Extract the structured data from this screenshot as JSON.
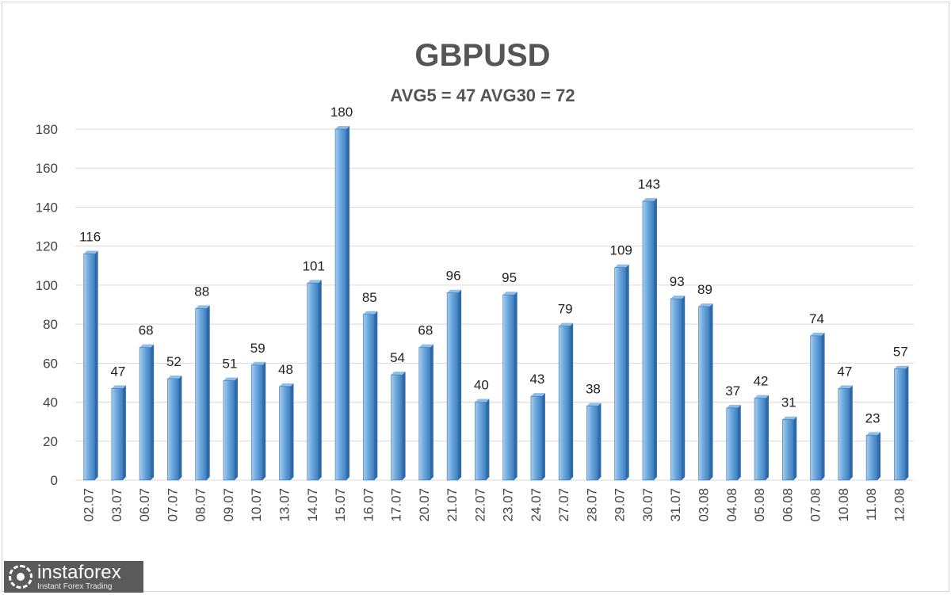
{
  "chart_data": {
    "type": "bar",
    "title": "GBPUSD",
    "subtitle": "AVG5 = 47 AVG30 = 72",
    "xlabel": "",
    "ylabel": "",
    "categories": [
      "02.07",
      "03.07",
      "06.07",
      "07.07",
      "08.07",
      "09.07",
      "10.07",
      "13.07",
      "14.07",
      "15.07",
      "16.07",
      "17.07",
      "20.07",
      "21.07",
      "22.07",
      "23.07",
      "24.07",
      "27.07",
      "28.07",
      "29.07",
      "30.07",
      "31.07",
      "03.08",
      "04.08",
      "05.08",
      "06.08",
      "07.08",
      "10.08",
      "11.08",
      "12.08"
    ],
    "values": [
      116,
      47,
      68,
      52,
      88,
      51,
      59,
      48,
      101,
      180,
      85,
      54,
      68,
      96,
      40,
      95,
      43,
      79,
      38,
      109,
      143,
      93,
      89,
      37,
      42,
      31,
      74,
      47,
      23,
      57
    ],
    "ylim": [
      0,
      180
    ],
    "yticks": [
      0,
      20,
      40,
      60,
      80,
      100,
      120,
      140,
      160,
      180
    ],
    "grid": true,
    "legend": "none",
    "bar_color": "#5b9bd5"
  },
  "logo": {
    "icon": "gear-icon",
    "name": "instaforex",
    "tagline": "Instant Forex Trading"
  }
}
